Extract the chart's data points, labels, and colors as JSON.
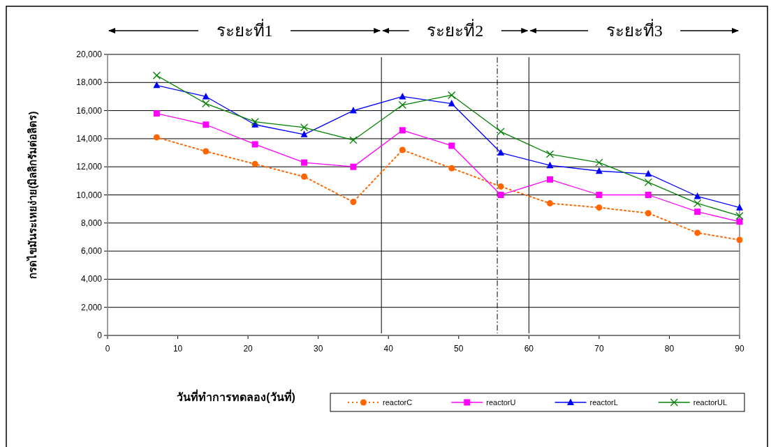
{
  "chart_data": {
    "type": "line",
    "xlabel": "วันที่ทำการทดลอง(วันที่)",
    "ylabel": "กรดไขมันระเหยง่าย(มิลลิกรัมต่อลิตร)",
    "annotations": [
      "ระยะที่1",
      "ระยะที่2",
      "ระยะที่3"
    ],
    "xlim": [
      0,
      90
    ],
    "xticks": [
      0,
      10,
      20,
      30,
      40,
      50,
      60,
      70,
      80,
      90
    ],
    "ylim": [
      0,
      20000
    ],
    "yticks": [
      {
        "value": 0,
        "label": "0"
      },
      {
        "value": 2000,
        "label": "2,000"
      },
      {
        "value": 4000,
        "label": "4,000"
      },
      {
        "value": 6000,
        "label": "6,000"
      },
      {
        "value": 8000,
        "label": "8,000"
      },
      {
        "value": 10000,
        "label": "10,000"
      },
      {
        "value": 12000,
        "label": "12,000"
      },
      {
        "value": 14000,
        "label": "14,000"
      },
      {
        "value": 16000,
        "label": "16,000"
      },
      {
        "value": 18000,
        "label": "18,000"
      },
      {
        "value": 20000,
        "label": "20,000"
      }
    ],
    "x": [
      7,
      14,
      21,
      28,
      35,
      42,
      49,
      56,
      63,
      70,
      77,
      84,
      90
    ],
    "series": [
      {
        "name": "reactorC",
        "color": "#ff6600",
        "marker": "circle",
        "line_style": "dotted",
        "values": [
          14100,
          13100,
          12200,
          11300,
          9500,
          13200,
          11900,
          10600,
          9400,
          9100,
          8700,
          7300,
          6800
        ]
      },
      {
        "name": "reactorU",
        "color": "#ff00ff",
        "marker": "square",
        "line_style": "solid",
        "values": [
          15800,
          15000,
          13600,
          12300,
          12000,
          14600,
          13500,
          10000,
          11100,
          10000,
          10000,
          8800,
          8100
        ]
      },
      {
        "name": "reactorL",
        "color": "#0000ff",
        "marker": "triangle",
        "line_style": "solid",
        "values": [
          17800,
          17000,
          15000,
          14300,
          16000,
          17000,
          16500,
          13000,
          12100,
          11700,
          11500,
          9900,
          9100
        ]
      },
      {
        "name": "reactorUL",
        "color": "#008000",
        "marker": "cross",
        "line_style": "solid",
        "values": [
          18500,
          16500,
          15200,
          14800,
          13900,
          16400,
          17100,
          14500,
          12900,
          12300,
          10900,
          9400,
          8500
        ]
      }
    ],
    "ref_lines": [
      {
        "axis": "x",
        "value": 39,
        "color": "#000000",
        "line_style": "solid"
      },
      {
        "axis": "x",
        "value": 55.5,
        "color": "#000000",
        "line_style": "dashed"
      },
      {
        "axis": "x",
        "value": 60,
        "color": "#000000",
        "line_style": "solid"
      }
    ],
    "grid": "y",
    "legend": "bottom"
  }
}
